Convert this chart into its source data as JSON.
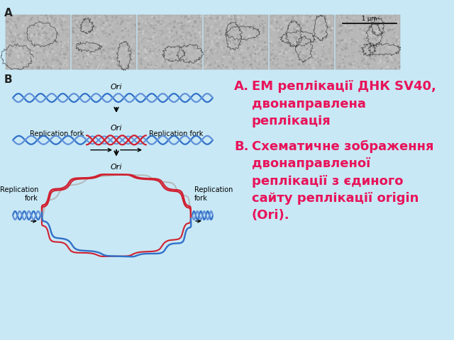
{
  "bg_color": "#c8e8f5",
  "white_color": "#ffffff",
  "text_color": "#e8135a",
  "dna_blue": "#3070c8",
  "dna_blue_light": "#6090d8",
  "dna_red": "#d02030",
  "dna_gray": "#b0b0b0",
  "arrow_color": "#222222",
  "label_color": "#222222",
  "text_A": "EM реплікації ДНК SV40,\nдвонаправлена\nреплікація",
  "text_B": "Схематичне зображення\nдвонаправленої\nреплікації з єдиного\nсайту реплікації origin\n(Ori).",
  "ori_label": "Ori",
  "scale_bar": "1 μm",
  "rep_fork": "Replication fork",
  "rep_fork3_left": "Replication\nfork",
  "rep_fork3_right": "Replication\nfork"
}
